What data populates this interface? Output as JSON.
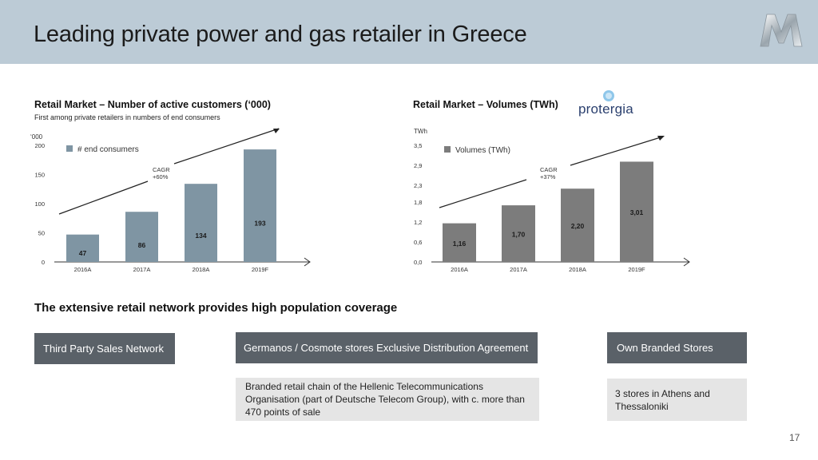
{
  "header": {
    "title": "Leading private power and gas retailer in Greece"
  },
  "customers": {
    "title": "Retail Market – Number of active customers (‘000)",
    "subtitle": "First among private retailers in numbers of end consumers",
    "unit": "‘000",
    "legend": "# end consumers",
    "cagr_label": "CAGR",
    "cagr_value": "+60%",
    "value_labels": [
      "47",
      "86",
      "134",
      "193"
    ]
  },
  "volumes": {
    "title": "Retail Market – Volumes (TWh)",
    "unit": "TWh",
    "legend": "Volumes (TWh)",
    "cagr_label": "CAGR",
    "cagr_value": "+37%",
    "value_labels": [
      "1,16",
      "1,70",
      "2,20",
      "3,01"
    ],
    "brand": "protergia"
  },
  "network": {
    "heading": "The extensive retail network provides high population coverage",
    "third_party": "Third Party Sales Network",
    "germanos": "Germanos / Cosmote stores Exclusive Distribution Agreement",
    "germanos_desc": "Branded retail chain of the Hellenic Telecommunications Organisation (part of Deutsche Telecom Group), with c. more than 470 points of sale",
    "own_stores": "Own Branded Stores",
    "own_stores_desc": "3 stores in Athens and Thessaloniki"
  },
  "page_number": "17",
  "colors": {
    "bar_customers": "#7f95a3",
    "bar_volumes": "#7c7c7c",
    "header_bg": "#bccbd6",
    "dark_box": "#5a6168",
    "light_box": "#e5e5e5"
  },
  "chart_data": [
    {
      "type": "bar",
      "title": "Retail Market – Number of active customers (‘000)",
      "categories": [
        "2016A",
        "2017A",
        "2018A",
        "2019F"
      ],
      "series": [
        {
          "name": "# end consumers",
          "values": [
            47,
            86,
            134,
            193
          ]
        }
      ],
      "ylabel": "‘000",
      "ylim": [
        0,
        200
      ],
      "yticks": [
        "0",
        "50",
        "100",
        "150",
        "200"
      ],
      "ytick_values": [
        0,
        50,
        100,
        150,
        200
      ],
      "legend": "top-left",
      "grid": false
    },
    {
      "type": "bar",
      "title": "Retail Market – Volumes (TWh)",
      "categories": [
        "2016A",
        "2017A",
        "2018A",
        "2019F"
      ],
      "series": [
        {
          "name": "Volumes (TWh)",
          "values": [
            1.16,
            1.7,
            2.2,
            3.01
          ]
        }
      ],
      "ylabel": "TWh",
      "ylim": [
        0,
        3.5
      ],
      "yticks": [
        "0,0",
        "0,6",
        "1,2",
        "1,8",
        "2,3",
        "2,9",
        "3,5"
      ],
      "ytick_values": [
        0,
        0.6,
        1.2,
        1.8,
        2.3,
        2.9,
        3.5
      ],
      "legend": "top-left",
      "grid": false
    }
  ]
}
